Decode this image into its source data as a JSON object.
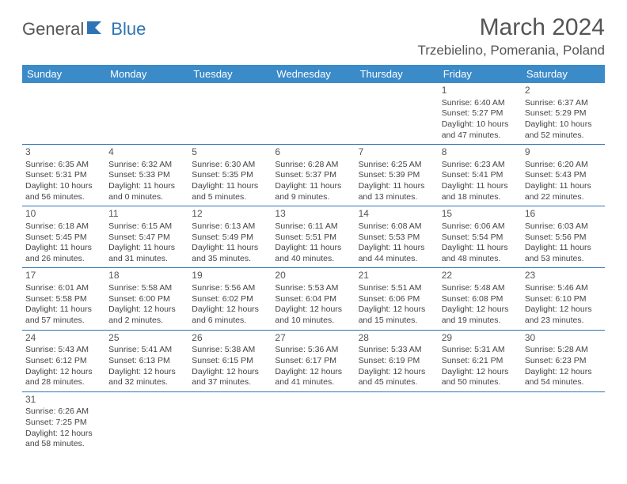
{
  "logo": {
    "text1": "General",
    "text2": "Blue"
  },
  "title": "March 2024",
  "location": "Trzebielino, Pomerania, Poland",
  "colors": {
    "header_bg": "#3b8bc9",
    "header_text": "#ffffff",
    "border": "#2e74b5",
    "text": "#444444",
    "title_text": "#555555"
  },
  "day_headers": [
    "Sunday",
    "Monday",
    "Tuesday",
    "Wednesday",
    "Thursday",
    "Friday",
    "Saturday"
  ],
  "weeks": [
    [
      null,
      null,
      null,
      null,
      null,
      {
        "n": "1",
        "sr": "Sunrise: 6:40 AM",
        "ss": "Sunset: 5:27 PM",
        "dl": "Daylight: 10 hours and 47 minutes."
      },
      {
        "n": "2",
        "sr": "Sunrise: 6:37 AM",
        "ss": "Sunset: 5:29 PM",
        "dl": "Daylight: 10 hours and 52 minutes."
      }
    ],
    [
      {
        "n": "3",
        "sr": "Sunrise: 6:35 AM",
        "ss": "Sunset: 5:31 PM",
        "dl": "Daylight: 10 hours and 56 minutes."
      },
      {
        "n": "4",
        "sr": "Sunrise: 6:32 AM",
        "ss": "Sunset: 5:33 PM",
        "dl": "Daylight: 11 hours and 0 minutes."
      },
      {
        "n": "5",
        "sr": "Sunrise: 6:30 AM",
        "ss": "Sunset: 5:35 PM",
        "dl": "Daylight: 11 hours and 5 minutes."
      },
      {
        "n": "6",
        "sr": "Sunrise: 6:28 AM",
        "ss": "Sunset: 5:37 PM",
        "dl": "Daylight: 11 hours and 9 minutes."
      },
      {
        "n": "7",
        "sr": "Sunrise: 6:25 AM",
        "ss": "Sunset: 5:39 PM",
        "dl": "Daylight: 11 hours and 13 minutes."
      },
      {
        "n": "8",
        "sr": "Sunrise: 6:23 AM",
        "ss": "Sunset: 5:41 PM",
        "dl": "Daylight: 11 hours and 18 minutes."
      },
      {
        "n": "9",
        "sr": "Sunrise: 6:20 AM",
        "ss": "Sunset: 5:43 PM",
        "dl": "Daylight: 11 hours and 22 minutes."
      }
    ],
    [
      {
        "n": "10",
        "sr": "Sunrise: 6:18 AM",
        "ss": "Sunset: 5:45 PM",
        "dl": "Daylight: 11 hours and 26 minutes."
      },
      {
        "n": "11",
        "sr": "Sunrise: 6:15 AM",
        "ss": "Sunset: 5:47 PM",
        "dl": "Daylight: 11 hours and 31 minutes."
      },
      {
        "n": "12",
        "sr": "Sunrise: 6:13 AM",
        "ss": "Sunset: 5:49 PM",
        "dl": "Daylight: 11 hours and 35 minutes."
      },
      {
        "n": "13",
        "sr": "Sunrise: 6:11 AM",
        "ss": "Sunset: 5:51 PM",
        "dl": "Daylight: 11 hours and 40 minutes."
      },
      {
        "n": "14",
        "sr": "Sunrise: 6:08 AM",
        "ss": "Sunset: 5:53 PM",
        "dl": "Daylight: 11 hours and 44 minutes."
      },
      {
        "n": "15",
        "sr": "Sunrise: 6:06 AM",
        "ss": "Sunset: 5:54 PM",
        "dl": "Daylight: 11 hours and 48 minutes."
      },
      {
        "n": "16",
        "sr": "Sunrise: 6:03 AM",
        "ss": "Sunset: 5:56 PM",
        "dl": "Daylight: 11 hours and 53 minutes."
      }
    ],
    [
      {
        "n": "17",
        "sr": "Sunrise: 6:01 AM",
        "ss": "Sunset: 5:58 PM",
        "dl": "Daylight: 11 hours and 57 minutes."
      },
      {
        "n": "18",
        "sr": "Sunrise: 5:58 AM",
        "ss": "Sunset: 6:00 PM",
        "dl": "Daylight: 12 hours and 2 minutes."
      },
      {
        "n": "19",
        "sr": "Sunrise: 5:56 AM",
        "ss": "Sunset: 6:02 PM",
        "dl": "Daylight: 12 hours and 6 minutes."
      },
      {
        "n": "20",
        "sr": "Sunrise: 5:53 AM",
        "ss": "Sunset: 6:04 PM",
        "dl": "Daylight: 12 hours and 10 minutes."
      },
      {
        "n": "21",
        "sr": "Sunrise: 5:51 AM",
        "ss": "Sunset: 6:06 PM",
        "dl": "Daylight: 12 hours and 15 minutes."
      },
      {
        "n": "22",
        "sr": "Sunrise: 5:48 AM",
        "ss": "Sunset: 6:08 PM",
        "dl": "Daylight: 12 hours and 19 minutes."
      },
      {
        "n": "23",
        "sr": "Sunrise: 5:46 AM",
        "ss": "Sunset: 6:10 PM",
        "dl": "Daylight: 12 hours and 23 minutes."
      }
    ],
    [
      {
        "n": "24",
        "sr": "Sunrise: 5:43 AM",
        "ss": "Sunset: 6:12 PM",
        "dl": "Daylight: 12 hours and 28 minutes."
      },
      {
        "n": "25",
        "sr": "Sunrise: 5:41 AM",
        "ss": "Sunset: 6:13 PM",
        "dl": "Daylight: 12 hours and 32 minutes."
      },
      {
        "n": "26",
        "sr": "Sunrise: 5:38 AM",
        "ss": "Sunset: 6:15 PM",
        "dl": "Daylight: 12 hours and 37 minutes."
      },
      {
        "n": "27",
        "sr": "Sunrise: 5:36 AM",
        "ss": "Sunset: 6:17 PM",
        "dl": "Daylight: 12 hours and 41 minutes."
      },
      {
        "n": "28",
        "sr": "Sunrise: 5:33 AM",
        "ss": "Sunset: 6:19 PM",
        "dl": "Daylight: 12 hours and 45 minutes."
      },
      {
        "n": "29",
        "sr": "Sunrise: 5:31 AM",
        "ss": "Sunset: 6:21 PM",
        "dl": "Daylight: 12 hours and 50 minutes."
      },
      {
        "n": "30",
        "sr": "Sunrise: 5:28 AM",
        "ss": "Sunset: 6:23 PM",
        "dl": "Daylight: 12 hours and 54 minutes."
      }
    ],
    [
      {
        "n": "31",
        "sr": "Sunrise: 6:26 AM",
        "ss": "Sunset: 7:25 PM",
        "dl": "Daylight: 12 hours and 58 minutes."
      },
      null,
      null,
      null,
      null,
      null,
      null
    ]
  ]
}
